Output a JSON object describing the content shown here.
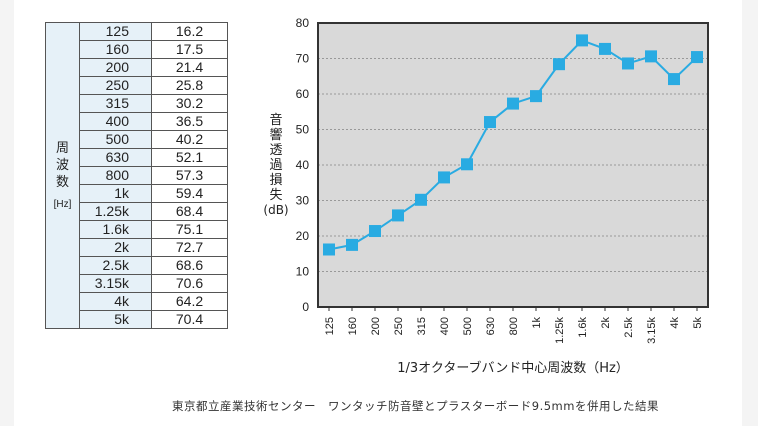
{
  "table": {
    "header_label": [
      "周",
      "波",
      "数"
    ],
    "header_unit": "[Hz]",
    "rows": [
      [
        "125",
        "16.2"
      ],
      [
        "160",
        "17.5"
      ],
      [
        "200",
        "21.4"
      ],
      [
        "250",
        "25.8"
      ],
      [
        "315",
        "30.2"
      ],
      [
        "400",
        "36.5"
      ],
      [
        "500",
        "40.2"
      ],
      [
        "630",
        "52.1"
      ],
      [
        "800",
        "57.3"
      ],
      [
        "1k",
        "59.4"
      ],
      [
        "1.25k",
        "68.4"
      ],
      [
        "1.6k",
        "75.1"
      ],
      [
        "2k",
        "72.7"
      ],
      [
        "2.5k",
        "68.6"
      ],
      [
        "3.15k",
        "70.6"
      ],
      [
        "4k",
        "64.2"
      ],
      [
        "5k",
        "70.4"
      ]
    ]
  },
  "chart_data": {
    "type": "line",
    "categories": [
      "125",
      "160",
      "200",
      "250",
      "315",
      "400",
      "500",
      "630",
      "800",
      "1k",
      "1.25k",
      "1.6k",
      "2k",
      "2.5k",
      "3.15k",
      "4k",
      "5k"
    ],
    "values": [
      16.2,
      17.5,
      21.4,
      25.8,
      30.2,
      36.5,
      40.2,
      52.1,
      57.3,
      59.4,
      68.4,
      75.1,
      72.7,
      68.6,
      70.6,
      64.2,
      70.4
    ],
    "xlabel": "1/3オクターブバンド中心周波数（Hz）",
    "ylabel": [
      "音",
      "響",
      "透",
      "過",
      "損",
      "失",
      "(dB)"
    ],
    "ylim": [
      0,
      80
    ],
    "yticks": [
      "0",
      "10",
      "20",
      "30",
      "40",
      "50",
      "60",
      "70",
      "80"
    ],
    "grid": true,
    "marker": "square",
    "colors": {
      "series": "#29abe2",
      "plot_bg": "#d9d9d9",
      "border": "#333333"
    }
  },
  "caption": "東京都立産業技術センター　ワンタッチ防音壁とプラスターボード9.5mmを併用した結果"
}
